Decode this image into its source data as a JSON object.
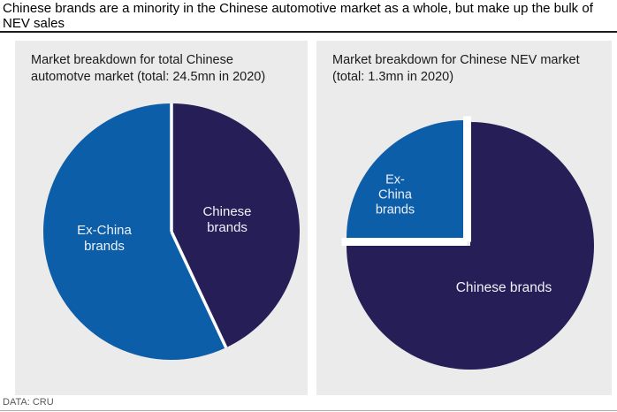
{
  "header": {
    "title": "Chinese brands are a minority in the Chinese automotive market as a whole, but make up the bulk of NEV sales"
  },
  "footer": {
    "source": "DATA: CRU"
  },
  "colors": {
    "chinese_brands": "#261e56",
    "ex_china_brands": "#0d5ea9",
    "panel_background": "#ebebeb",
    "separator": "#ffffff"
  },
  "chart_data": [
    {
      "type": "pie",
      "title": "Market breakdown for total Chinese automotve market (total: 24.5mn in 2020)",
      "start_angle_deg": 0,
      "direction": "clockwise",
      "legend_position": "none",
      "slices": [
        {
          "label": "Chinese brands",
          "value": 43,
          "color": "#261e56",
          "exploded": false
        },
        {
          "label": "Ex-China brands",
          "value": 57,
          "color": "#0d5ea9",
          "exploded": false
        }
      ]
    },
    {
      "type": "pie",
      "title": "Market breakdown for Chinese NEV market (total: 1.3mn in 2020)",
      "start_angle_deg": 0,
      "direction": "clockwise",
      "legend_position": "none",
      "slices": [
        {
          "label": "Chinese brands",
          "value": 75,
          "color": "#261e56",
          "exploded": false
        },
        {
          "label": "Ex-China brands",
          "value": 25,
          "color": "#0d5ea9",
          "exploded": true
        }
      ]
    }
  ]
}
